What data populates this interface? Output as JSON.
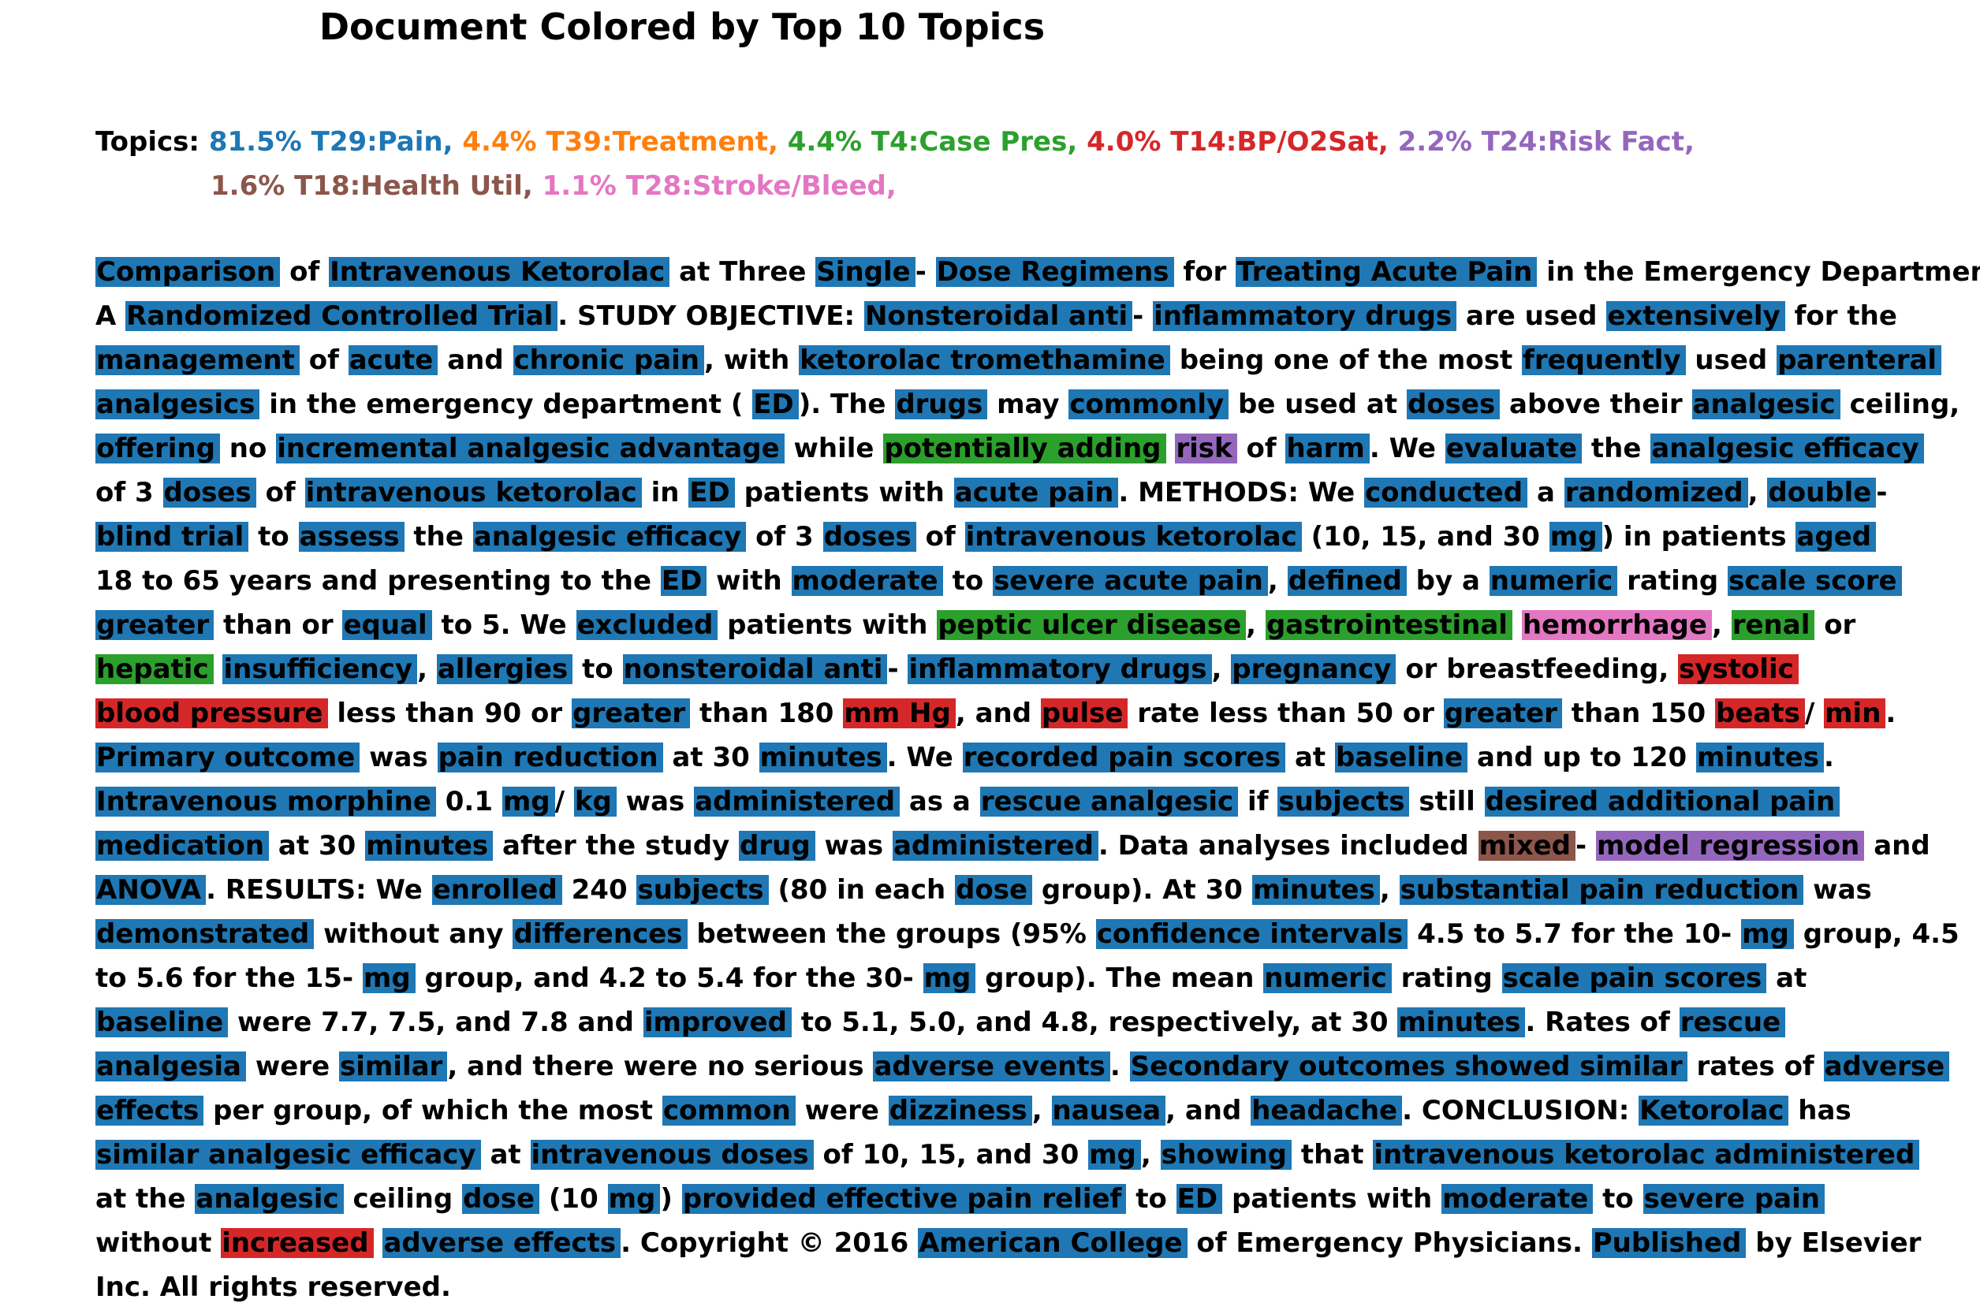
{
  "title": "Document Colored by Top 10 Topics",
  "topics": {
    "label": "Topics:",
    "lines": [
      [
        {
          "text": "81.5% T29:Pain,",
          "topic": "T29"
        },
        {
          "text": "4.4% T39:Treatment,",
          "topic": "T39"
        },
        {
          "text": "4.4% T4:Case Pres,",
          "topic": "T4"
        },
        {
          "text": "4.0% T14:BP/O2Sat,",
          "topic": "T14"
        },
        {
          "text": "2.2% T24:Risk Fact,",
          "topic": "T24"
        }
      ],
      [
        {
          "text": "1.6% T18:Health Util,",
          "topic": "T18"
        },
        {
          "text": "1.1% T28:Stroke/Bleed,",
          "topic": "T28"
        }
      ]
    ]
  },
  "colors": {
    "T29": "#1f77b4",
    "T39": "#ff7f0e",
    "T4": "#2ca02c",
    "T14": "#d62728",
    "T24": "#9467bd",
    "T18": "#8c564b",
    "T28": "#e377c2"
  },
  "document": {
    "lines": [
      [
        [
          "Comparison",
          "T29"
        ],
        [
          "of",
          null
        ],
        [
          "Intravenous Ketorolac",
          "T29"
        ],
        [
          "at Three",
          null
        ],
        [
          "Single",
          "T29"
        ],
        [
          "-",
          null
        ],
        [
          "Dose Regimens",
          "T29"
        ],
        [
          "for",
          null
        ],
        [
          "Treating Acute Pain",
          "T29"
        ],
        [
          "in the Emergency Department:",
          null
        ]
      ],
      [
        [
          "A",
          null
        ],
        [
          "Randomized Controlled Trial",
          "T29"
        ],
        [
          ". STUDY OBJECTIVE:",
          null
        ],
        [
          "Nonsteroidal anti",
          "T29"
        ],
        [
          "-",
          null
        ],
        [
          "inflammatory drugs",
          "T29"
        ],
        [
          "are used",
          null
        ],
        [
          "extensively",
          "T29"
        ],
        [
          "for the",
          null
        ]
      ],
      [
        [
          "management",
          "T29"
        ],
        [
          "of",
          null
        ],
        [
          "acute",
          "T29"
        ],
        [
          "and",
          null
        ],
        [
          "chronic pain",
          "T29"
        ],
        [
          ", with",
          null
        ],
        [
          "ketorolac tromethamine",
          "T29"
        ],
        [
          "being one of the most",
          null
        ],
        [
          "frequently",
          "T29"
        ],
        [
          "used",
          null
        ],
        [
          "parenteral",
          "T29"
        ]
      ],
      [
        [
          "analgesics",
          "T29"
        ],
        [
          "in the emergency department (",
          null
        ],
        [
          "ED",
          "T29"
        ],
        [
          "). The",
          null
        ],
        [
          "drugs",
          "T29"
        ],
        [
          "may",
          null
        ],
        [
          "commonly",
          "T29"
        ],
        [
          "be used at",
          null
        ],
        [
          "doses",
          "T29"
        ],
        [
          "above their",
          null
        ],
        [
          "analgesic",
          "T29"
        ],
        [
          "ceiling,",
          null
        ]
      ],
      [
        [
          "offering",
          "T29"
        ],
        [
          "no",
          null
        ],
        [
          "incremental analgesic advantage",
          "T29"
        ],
        [
          "while",
          null
        ],
        [
          "potentially adding",
          "T4"
        ],
        [
          "risk",
          "T24"
        ],
        [
          "of",
          null
        ],
        [
          "harm",
          "T29"
        ],
        [
          ". We",
          null
        ],
        [
          "evaluate",
          "T29"
        ],
        [
          "the",
          null
        ],
        [
          "analgesic efficacy",
          "T29"
        ]
      ],
      [
        [
          "of 3",
          null
        ],
        [
          "doses",
          "T29"
        ],
        [
          "of",
          null
        ],
        [
          "intravenous ketorolac",
          "T29"
        ],
        [
          "in",
          null
        ],
        [
          "ED",
          "T29"
        ],
        [
          "patients with",
          null
        ],
        [
          "acute pain",
          "T29"
        ],
        [
          ". METHODS: We",
          null
        ],
        [
          "conducted",
          "T29"
        ],
        [
          "a",
          null
        ],
        [
          "randomized",
          "T29"
        ],
        [
          ",",
          null
        ],
        [
          "double",
          "T29"
        ],
        [
          "-",
          null
        ]
      ],
      [
        [
          "blind trial",
          "T29"
        ],
        [
          "to",
          null
        ],
        [
          "assess",
          "T29"
        ],
        [
          "the",
          null
        ],
        [
          "analgesic efficacy",
          "T29"
        ],
        [
          "of 3",
          null
        ],
        [
          "doses",
          "T29"
        ],
        [
          "of",
          null
        ],
        [
          "intravenous ketorolac",
          "T29"
        ],
        [
          "(10, 15, and 30",
          null
        ],
        [
          "mg",
          "T29"
        ],
        [
          ") in patients",
          null
        ],
        [
          "aged",
          "T29"
        ]
      ],
      [
        [
          "18 to 65 years and presenting to the",
          null
        ],
        [
          "ED",
          "T29"
        ],
        [
          "with",
          null
        ],
        [
          "moderate",
          "T29"
        ],
        [
          "to",
          null
        ],
        [
          "severe acute pain",
          "T29"
        ],
        [
          ",",
          null
        ],
        [
          "defined",
          "T29"
        ],
        [
          "by a",
          null
        ],
        [
          "numeric",
          "T29"
        ],
        [
          "rating",
          null
        ],
        [
          "scale score",
          "T29"
        ]
      ],
      [
        [
          "greater",
          "T29"
        ],
        [
          "than or",
          null
        ],
        [
          "equal",
          "T29"
        ],
        [
          "to 5. We",
          null
        ],
        [
          "excluded",
          "T29"
        ],
        [
          "patients with",
          null
        ],
        [
          "peptic ulcer disease",
          "T4"
        ],
        [
          ",",
          null
        ],
        [
          "gastrointestinal",
          "T4"
        ],
        [
          "hemorrhage",
          "T28"
        ],
        [
          ",",
          null
        ],
        [
          "renal",
          "T4"
        ],
        [
          "or",
          null
        ]
      ],
      [
        [
          "hepatic",
          "T4"
        ],
        [
          "insufficiency",
          "T29"
        ],
        [
          ",",
          null
        ],
        [
          "allergies",
          "T29"
        ],
        [
          "to",
          null
        ],
        [
          "nonsteroidal anti",
          "T29"
        ],
        [
          "-",
          null
        ],
        [
          "inflammatory drugs",
          "T29"
        ],
        [
          ",",
          null
        ],
        [
          "pregnancy",
          "T29"
        ],
        [
          "or breastfeeding,",
          null
        ],
        [
          "systolic",
          "T14"
        ]
      ],
      [
        [
          "blood pressure",
          "T14"
        ],
        [
          "less than 90 or",
          null
        ],
        [
          "greater",
          "T29"
        ],
        [
          "than 180",
          null
        ],
        [
          "mm Hg",
          "T14"
        ],
        [
          ", and",
          null
        ],
        [
          "pulse",
          "T14"
        ],
        [
          "rate less than 50 or",
          null
        ],
        [
          "greater",
          "T29"
        ],
        [
          "than 150",
          null
        ],
        [
          "beats",
          "T14"
        ],
        [
          "/",
          null
        ],
        [
          "min",
          "T14"
        ],
        [
          ".",
          null
        ]
      ],
      [
        [
          "Primary outcome",
          "T29"
        ],
        [
          "was",
          null
        ],
        [
          "pain reduction",
          "T29"
        ],
        [
          "at 30",
          null
        ],
        [
          "minutes",
          "T29"
        ],
        [
          ". We",
          null
        ],
        [
          "recorded pain scores",
          "T29"
        ],
        [
          "at",
          null
        ],
        [
          "baseline",
          "T29"
        ],
        [
          "and up to 120",
          null
        ],
        [
          "minutes",
          "T29"
        ],
        [
          ".",
          null
        ]
      ],
      [
        [
          "Intravenous morphine",
          "T29"
        ],
        [
          "0.1",
          null
        ],
        [
          "mg",
          "T29"
        ],
        [
          "/",
          null
        ],
        [
          "kg",
          "T29"
        ],
        [
          "was",
          null
        ],
        [
          "administered",
          "T29"
        ],
        [
          "as a",
          null
        ],
        [
          "rescue analgesic",
          "T29"
        ],
        [
          "if",
          null
        ],
        [
          "subjects",
          "T29"
        ],
        [
          "still",
          null
        ],
        [
          "desired additional pain",
          "T29"
        ]
      ],
      [
        [
          "medication",
          "T29"
        ],
        [
          "at 30",
          null
        ],
        [
          "minutes",
          "T29"
        ],
        [
          "after the study",
          null
        ],
        [
          "drug",
          "T29"
        ],
        [
          "was",
          null
        ],
        [
          "administered",
          "T29"
        ],
        [
          ". Data analyses included",
          null
        ],
        [
          "mixed",
          "T18"
        ],
        [
          "-",
          null
        ],
        [
          "model regression",
          "T24"
        ],
        [
          "and",
          null
        ]
      ],
      [
        [
          "ANOVA",
          "T29"
        ],
        [
          ". RESULTS: We",
          null
        ],
        [
          "enrolled",
          "T29"
        ],
        [
          "240",
          null
        ],
        [
          "subjects",
          "T29"
        ],
        [
          "(80 in each",
          null
        ],
        [
          "dose",
          "T29"
        ],
        [
          "group). At 30",
          null
        ],
        [
          "minutes",
          "T29"
        ],
        [
          ",",
          null
        ],
        [
          "substantial pain reduction",
          "T29"
        ],
        [
          "was",
          null
        ]
      ],
      [
        [
          "demonstrated",
          "T29"
        ],
        [
          "without any",
          null
        ],
        [
          "differences",
          "T29"
        ],
        [
          "between the groups (95%",
          null
        ],
        [
          "confidence intervals",
          "T29"
        ],
        [
          "4.5 to 5.7 for the 10-",
          null
        ],
        [
          "mg",
          "T29"
        ],
        [
          "group, 4.5",
          null
        ]
      ],
      [
        [
          "to 5.6 for the 15-",
          null
        ],
        [
          "mg",
          "T29"
        ],
        [
          "group, and 4.2 to 5.4 for the 30-",
          null
        ],
        [
          "mg",
          "T29"
        ],
        [
          "group). The mean",
          null
        ],
        [
          "numeric",
          "T29"
        ],
        [
          "rating",
          null
        ],
        [
          "scale pain scores",
          "T29"
        ],
        [
          "at",
          null
        ]
      ],
      [
        [
          "baseline",
          "T29"
        ],
        [
          "were 7.7, 7.5, and 7.8 and",
          null
        ],
        [
          "improved",
          "T29"
        ],
        [
          "to 5.1, 5.0, and 4.8, respectively, at 30",
          null
        ],
        [
          "minutes",
          "T29"
        ],
        [
          ". Rates of",
          null
        ],
        [
          "rescue",
          "T29"
        ]
      ],
      [
        [
          "analgesia",
          "T29"
        ],
        [
          "were",
          null
        ],
        [
          "similar",
          "T29"
        ],
        [
          ", and there were no serious",
          null
        ],
        [
          "adverse events",
          "T29"
        ],
        [
          ".",
          null
        ],
        [
          "Secondary outcomes showed similar",
          "T29"
        ],
        [
          "rates of",
          null
        ],
        [
          "adverse",
          "T29"
        ]
      ],
      [
        [
          "effects",
          "T29"
        ],
        [
          "per group, of which the most",
          null
        ],
        [
          "common",
          "T29"
        ],
        [
          "were",
          null
        ],
        [
          "dizziness",
          "T29"
        ],
        [
          ",",
          null
        ],
        [
          "nausea",
          "T29"
        ],
        [
          ", and",
          null
        ],
        [
          "headache",
          "T29"
        ],
        [
          ". CONCLUSION:",
          null
        ],
        [
          "Ketorolac",
          "T29"
        ],
        [
          "has",
          null
        ]
      ],
      [
        [
          "similar analgesic efficacy",
          "T29"
        ],
        [
          "at",
          null
        ],
        [
          "intravenous doses",
          "T29"
        ],
        [
          "of 10, 15, and 30",
          null
        ],
        [
          "mg",
          "T29"
        ],
        [
          ",",
          null
        ],
        [
          "showing",
          "T29"
        ],
        [
          "that",
          null
        ],
        [
          "intravenous ketorolac administered",
          "T29"
        ]
      ],
      [
        [
          "at the",
          null
        ],
        [
          "analgesic",
          "T29"
        ],
        [
          "ceiling",
          null
        ],
        [
          "dose",
          "T29"
        ],
        [
          "(10",
          null
        ],
        [
          "mg",
          "T29"
        ],
        [
          ")",
          null
        ],
        [
          "provided effective pain relief",
          "T29"
        ],
        [
          "to",
          null
        ],
        [
          "ED",
          "T29"
        ],
        [
          "patients with",
          null
        ],
        [
          "moderate",
          "T29"
        ],
        [
          "to",
          null
        ],
        [
          "severe pain",
          "T29"
        ]
      ],
      [
        [
          "without",
          null
        ],
        [
          "increased",
          "T14"
        ],
        [
          "adverse effects",
          "T29"
        ],
        [
          ". Copyright © 2016",
          null
        ],
        [
          "American College",
          "T29"
        ],
        [
          "of Emergency Physicians.",
          null
        ],
        [
          "Published",
          "T29"
        ],
        [
          "by Elsevier",
          null
        ]
      ],
      [
        [
          "Inc. All rights reserved.",
          null
        ]
      ]
    ]
  }
}
